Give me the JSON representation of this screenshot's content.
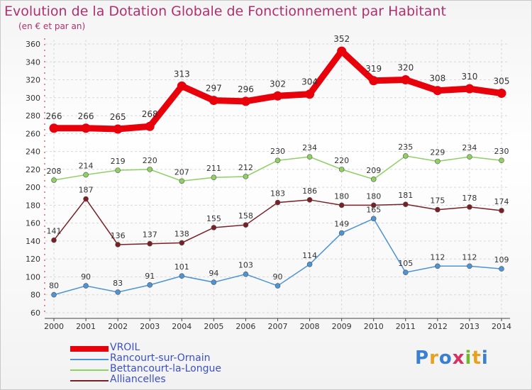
{
  "title": "Evolution de la Dotation Globale de Fonctionnement par Habitant",
  "subtitle": "(en € et par an)",
  "logo": "Proxiti",
  "chart_data": {
    "type": "line",
    "title": "Evolution de la Dotation Globale de Fonctionnement par Habitant",
    "subtitle": "(en € et par an)",
    "x": [
      "2000",
      "2001",
      "2002",
      "2003",
      "2004",
      "2005",
      "2006",
      "2007",
      "2008",
      "2009",
      "2010",
      "2011",
      "2012",
      "2013",
      "2014"
    ],
    "ylim": [
      60,
      360
    ],
    "yticks": [
      60,
      80,
      100,
      120,
      140,
      160,
      180,
      200,
      220,
      240,
      260,
      280,
      300,
      320,
      340,
      360
    ],
    "grid": true,
    "legend_position": "bottom-left",
    "series": [
      {
        "name": "VROIL",
        "color": "#e8000b",
        "values": [
          266,
          266,
          265,
          268,
          313,
          297,
          296,
          302,
          304,
          352,
          319,
          320,
          308,
          310,
          305
        ]
      },
      {
        "name": "Rancourt-sur-Ornain",
        "color": "#4d94d4",
        "values": [
          80,
          90,
          83,
          91,
          101,
          94,
          103,
          90,
          114,
          149,
          165,
          105,
          112,
          112,
          109
        ]
      },
      {
        "name": "Bettancourt-la-Longue",
        "color": "#8fd063",
        "values": [
          208,
          214,
          219,
          220,
          207,
          211,
          212,
          230,
          234,
          220,
          209,
          235,
          229,
          234,
          230
        ]
      },
      {
        "name": "Alliancelles",
        "color": "#7a1f25",
        "values": [
          141,
          187,
          136,
          137,
          138,
          155,
          158,
          183,
          186,
          180,
          180,
          181,
          175,
          178,
          174
        ]
      }
    ]
  }
}
